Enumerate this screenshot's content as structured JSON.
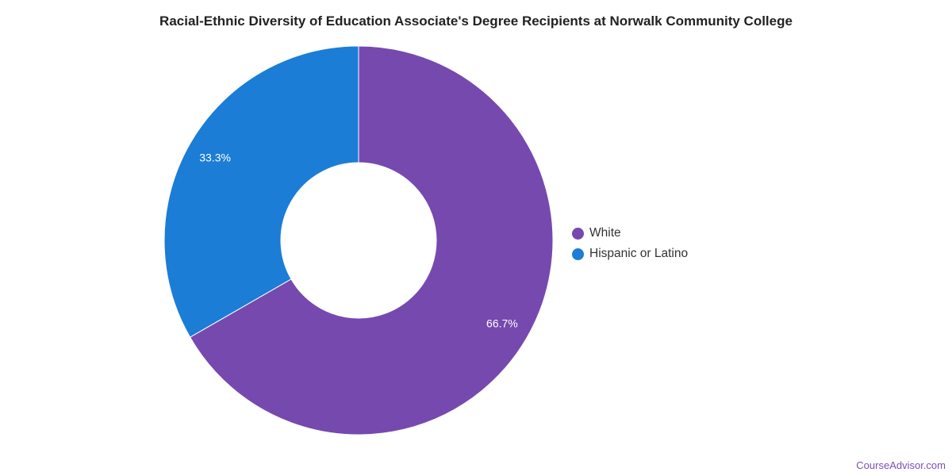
{
  "chart_data": {
    "type": "pie",
    "title": "Racial-Ethnic Diversity of Education Associate's Degree Recipients at Norwalk Community College",
    "donut": true,
    "slices": [
      {
        "name": "White",
        "value": 66.7,
        "label": "66.7%",
        "color": "#7649AF"
      },
      {
        "name": "Hispanic or Latino",
        "value": 33.3,
        "label": "33.3%",
        "color": "#1B7DD5"
      }
    ],
    "legend_position": "right"
  },
  "watermark": "CourseAdvisor.com"
}
